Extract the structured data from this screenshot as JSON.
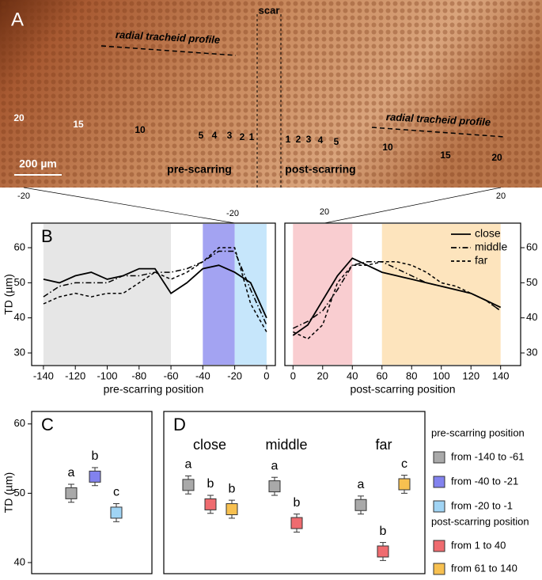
{
  "panel_a": {
    "label": "A",
    "scar": "scar",
    "profile_label": "radial tracheid profile",
    "pre_numbers": [
      "20",
      "15",
      "10",
      "5",
      "4",
      "3",
      "2",
      "1"
    ],
    "post_numbers": [
      "1",
      "2",
      "3",
      "4",
      "5",
      "10",
      "15",
      "20"
    ],
    "scale_bar": "200 µm",
    "pre_label": "pre-scarring",
    "post_label": "post-scarring",
    "zoom_labels": [
      "-20",
      "20"
    ]
  },
  "chart_data": [
    {
      "type": "line",
      "panel_label": "B",
      "ylabel": "TD (µm)",
      "xlabel": "pre-scarring position",
      "x": [
        -140,
        -130,
        -120,
        -110,
        -100,
        -90,
        -80,
        -70,
        -60,
        -50,
        -40,
        -30,
        -20,
        -10,
        0
      ],
      "series": [
        {
          "style": "solid",
          "color": "#000000",
          "values": [
            51,
            50,
            52,
            53,
            51,
            52,
            54,
            54,
            47,
            50,
            54,
            55,
            53,
            50,
            40
          ]
        },
        {
          "style": "dashdot",
          "color": "#000000",
          "values": [
            46,
            49,
            50,
            50,
            50,
            52,
            52,
            53,
            53,
            54,
            56,
            59,
            59,
            48,
            38
          ]
        },
        {
          "style": "dashed",
          "color": "#000000",
          "values": [
            44,
            46,
            47,
            46,
            47,
            47,
            50,
            53,
            51,
            53,
            56,
            60,
            60,
            44,
            36
          ]
        }
      ],
      "regions": [
        {
          "from": -140,
          "to": -60,
          "color": "#e6e6e6"
        },
        {
          "from": -40,
          "to": -20,
          "color": "#a3a3f2"
        },
        {
          "from": -20,
          "to": 0,
          "color": "#c6e6fb"
        }
      ],
      "xlim": [
        -147.4,
        5.5
      ],
      "ylim": [
        26.4,
        67
      ],
      "xticks": [
        -140,
        -120,
        -100,
        -80,
        -60,
        -40,
        -20,
        0
      ],
      "yticks": [
        30,
        40,
        50,
        60
      ]
    },
    {
      "type": "line",
      "xlabel": "post-scarring position",
      "x": [
        0,
        10,
        20,
        30,
        40,
        50,
        60,
        70,
        80,
        90,
        100,
        110,
        120,
        130,
        140
      ],
      "series": [
        {
          "name": "close",
          "style": "solid",
          "color": "#000000",
          "values": [
            35,
            38,
            45,
            52,
            57,
            55,
            53,
            52,
            51,
            50,
            49,
            48,
            47,
            45,
            43
          ]
        },
        {
          "name": "middle",
          "style": "dashdot",
          "color": "#000000",
          "values": [
            37,
            39,
            42,
            48,
            55,
            56,
            56,
            54,
            52,
            50,
            49,
            48,
            47,
            45,
            42
          ]
        },
        {
          "name": "far",
          "style": "dashed",
          "color": "#000000",
          "values": [
            36,
            34,
            38,
            50,
            55,
            55,
            56,
            56,
            55,
            53,
            50,
            49,
            47,
            45,
            42
          ]
        }
      ],
      "regions": [
        {
          "from": 0,
          "to": 40,
          "color": "#f9cdd0"
        },
        {
          "from": 60,
          "to": 140,
          "color": "#fde4bd"
        }
      ],
      "legend": "top-right",
      "xlim": [
        -5.5,
        153.5
      ],
      "ylim": [
        26.4,
        67
      ],
      "xticks": [
        0,
        20,
        40,
        60,
        80,
        100,
        120,
        140
      ],
      "yticks": [
        30,
        40,
        50,
        60
      ]
    },
    {
      "type": "errorbar",
      "panel_label": "C",
      "ylabel": "TD (µm)",
      "series": [
        {
          "name": "from -140 to -61",
          "color": "#a9a9a9",
          "values": [
            50.0
          ],
          "errors": [
            1.3
          ],
          "letters": [
            "a"
          ]
        },
        {
          "name": "from -40 to -21",
          "color": "#8282ee",
          "values": [
            52.4
          ],
          "errors": [
            1.3
          ],
          "letters": [
            "b"
          ]
        },
        {
          "name": "from -20 to -1",
          "color": "#a0d4f4",
          "values": [
            47.2
          ],
          "errors": [
            1.3
          ],
          "letters": [
            "c"
          ]
        }
      ],
      "ylim": [
        38.4,
        61.8
      ],
      "yticks": [
        40,
        50,
        60
      ]
    },
    {
      "type": "errorbar",
      "panel_label": "D",
      "categories": [
        "close",
        "middle",
        "far"
      ],
      "series": [
        {
          "color": "#a9a9a9",
          "values": [
            51.2,
            51.0,
            48.3
          ],
          "errors": [
            1.3,
            1.3,
            1.3
          ],
          "letters": [
            "a",
            "a",
            "a"
          ]
        },
        {
          "name": "from 1 to 40",
          "color": "#ef6b6f",
          "values": [
            48.4,
            45.7,
            41.6
          ],
          "errors": [
            1.3,
            1.3,
            1.3
          ],
          "letters": [
            "b",
            "b",
            "b"
          ]
        },
        {
          "name": "from 61 to 140",
          "color": "#f7c050",
          "values": [
            47.7,
            null,
            51.3
          ],
          "errors": [
            1.3,
            null,
            1.3
          ],
          "letters": [
            "b",
            null,
            "c"
          ]
        }
      ],
      "legend_groups": [
        "pre-scarring position",
        "post-scarring position"
      ],
      "ylim": [
        38.4,
        61.8
      ],
      "yticks": [
        40,
        50,
        60
      ]
    }
  ]
}
